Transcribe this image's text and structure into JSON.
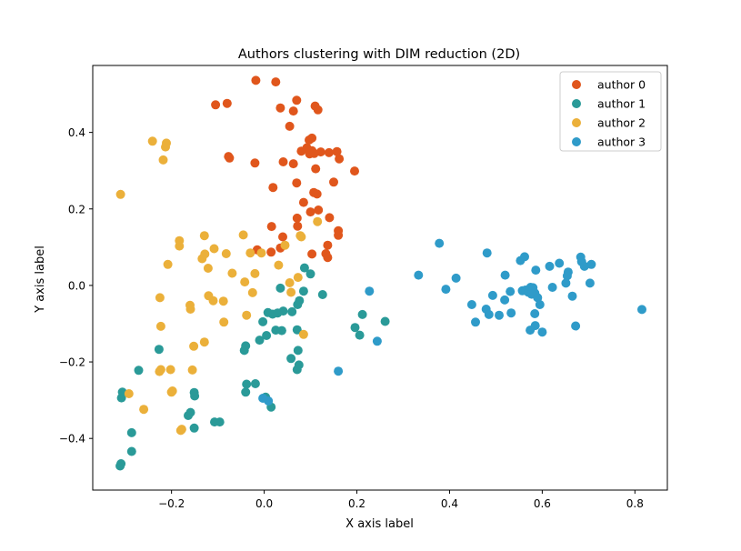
{
  "chart_data": {
    "type": "scatter",
    "title": "Authors clustering with DIM reduction (2D)",
    "xlabel": "X axis label",
    "ylabel": "Y axis label",
    "xlim": [
      -0.37,
      0.87
    ],
    "ylim": [
      -0.535,
      0.575
    ],
    "xticks": [
      -0.2,
      0.0,
      0.2,
      0.4,
      0.6,
      0.8
    ],
    "xtick_labels": [
      "−0.2",
      "0.0",
      "0.2",
      "0.4",
      "0.6",
      "0.8"
    ],
    "yticks": [
      -0.4,
      -0.2,
      0.0,
      0.2,
      0.4
    ],
    "ytick_labels": [
      "−0.4",
      "−0.2",
      "0.0",
      "0.2",
      "0.4"
    ],
    "grid": false,
    "legend_position": "top-right",
    "series": [
      {
        "name": "author 0",
        "color": "#e0561c",
        "points": [
          [
            -0.018,
            0.536
          ],
          [
            0.025,
            0.532
          ],
          [
            -0.105,
            0.472
          ],
          [
            -0.08,
            0.476
          ],
          [
            0.035,
            0.464
          ],
          [
            0.07,
            0.484
          ],
          [
            0.063,
            0.456
          ],
          [
            0.11,
            0.469
          ],
          [
            0.116,
            0.459
          ],
          [
            0.055,
            0.416
          ],
          [
            0.103,
            0.385
          ],
          [
            0.097,
            0.38
          ],
          [
            0.092,
            0.36
          ],
          [
            0.103,
            0.352
          ],
          [
            0.108,
            0.345
          ],
          [
            0.122,
            0.349
          ],
          [
            0.14,
            0.347
          ],
          [
            0.157,
            0.35
          ],
          [
            0.08,
            0.351
          ],
          [
            0.098,
            0.344
          ],
          [
            -0.077,
            0.337
          ],
          [
            -0.075,
            0.333
          ],
          [
            -0.02,
            0.32
          ],
          [
            0.041,
            0.323
          ],
          [
            0.063,
            0.318
          ],
          [
            0.162,
            0.331
          ],
          [
            0.111,
            0.305
          ],
          [
            0.195,
            0.299
          ],
          [
            0.07,
            0.268
          ],
          [
            0.15,
            0.27
          ],
          [
            0.019,
            0.256
          ],
          [
            0.107,
            0.243
          ],
          [
            0.114,
            0.239
          ],
          [
            0.085,
            0.217
          ],
          [
            0.1,
            0.192
          ],
          [
            0.117,
            0.197
          ],
          [
            0.071,
            0.176
          ],
          [
            0.141,
            0.177
          ],
          [
            0.072,
            0.155
          ],
          [
            0.016,
            0.154
          ],
          [
            0.16,
            0.143
          ],
          [
            0.04,
            0.127
          ],
          [
            0.16,
            0.131
          ],
          [
            -0.015,
            0.093
          ],
          [
            0.015,
            0.087
          ],
          [
            0.035,
            0.098
          ],
          [
            0.137,
            0.105
          ],
          [
            0.103,
            0.082
          ],
          [
            0.133,
            0.083
          ],
          [
            0.137,
            0.073
          ]
        ]
      },
      {
        "name": "author 1",
        "color": "#2a9a98",
        "points": [
          [
            0.087,
            0.046
          ],
          [
            0.1,
            0.03
          ],
          [
            0.035,
            -0.007
          ],
          [
            0.085,
            -0.015
          ],
          [
            0.126,
            -0.024
          ],
          [
            0.076,
            -0.04
          ],
          [
            0.072,
            -0.05
          ],
          [
            0.008,
            -0.071
          ],
          [
            0.018,
            -0.075
          ],
          [
            0.029,
            -0.072
          ],
          [
            0.041,
            -0.067
          ],
          [
            0.06,
            -0.069
          ],
          [
            -0.003,
            -0.095
          ],
          [
            0.025,
            -0.117
          ],
          [
            0.038,
            -0.118
          ],
          [
            0.071,
            -0.116
          ],
          [
            0.005,
            -0.131
          ],
          [
            -0.01,
            -0.143
          ],
          [
            -0.04,
            -0.158
          ],
          [
            -0.043,
            -0.17
          ],
          [
            0.073,
            -0.17
          ],
          [
            0.058,
            -0.191
          ],
          [
            0.075,
            -0.208
          ],
          [
            0.071,
            -0.22
          ],
          [
            0.196,
            -0.11
          ],
          [
            0.212,
            -0.076
          ],
          [
            0.206,
            -0.13
          ],
          [
            0.261,
            -0.094
          ],
          [
            -0.227,
            -0.167
          ],
          [
            -0.271,
            -0.222
          ],
          [
            -0.038,
            -0.258
          ],
          [
            -0.019,
            -0.257
          ],
          [
            -0.04,
            -0.279
          ],
          [
            -0.306,
            -0.279
          ],
          [
            -0.308,
            -0.294
          ],
          [
            -0.151,
            -0.28
          ],
          [
            -0.15,
            -0.289
          ],
          [
            0.003,
            -0.292
          ],
          [
            0.015,
            -0.318
          ],
          [
            -0.164,
            -0.34
          ],
          [
            -0.159,
            -0.332
          ],
          [
            -0.107,
            -0.357
          ],
          [
            -0.096,
            -0.357
          ],
          [
            -0.151,
            -0.373
          ],
          [
            -0.286,
            -0.385
          ],
          [
            -0.286,
            -0.434
          ],
          [
            -0.309,
            -0.466
          ],
          [
            -0.311,
            -0.472
          ]
        ]
      },
      {
        "name": "author 2",
        "color": "#ebb03a",
        "points": [
          [
            -0.241,
            0.377
          ],
          [
            -0.211,
            0.372
          ],
          [
            -0.213,
            0.362
          ],
          [
            -0.218,
            0.328
          ],
          [
            -0.31,
            0.238
          ],
          [
            0.115,
            0.167
          ],
          [
            -0.045,
            0.132
          ],
          [
            -0.129,
            0.13
          ],
          [
            0.078,
            0.13
          ],
          [
            0.08,
            0.127
          ],
          [
            -0.183,
            0.117
          ],
          [
            -0.183,
            0.103
          ],
          [
            -0.108,
            0.096
          ],
          [
            0.045,
            0.105
          ],
          [
            -0.128,
            0.082
          ],
          [
            -0.082,
            0.083
          ],
          [
            -0.134,
            0.07
          ],
          [
            -0.03,
            0.085
          ],
          [
            -0.006,
            0.085
          ],
          [
            -0.208,
            0.055
          ],
          [
            -0.121,
            0.045
          ],
          [
            0.031,
            0.053
          ],
          [
            -0.069,
            0.032
          ],
          [
            -0.042,
            0.009
          ],
          [
            0.055,
            0.007
          ],
          [
            -0.02,
            0.031
          ],
          [
            0.073,
            0.021
          ],
          [
            -0.225,
            -0.032
          ],
          [
            -0.12,
            -0.027
          ],
          [
            -0.11,
            -0.04
          ],
          [
            -0.088,
            -0.041
          ],
          [
            -0.025,
            -0.019
          ],
          [
            0.058,
            -0.018
          ],
          [
            -0.16,
            -0.052
          ],
          [
            -0.159,
            -0.062
          ],
          [
            -0.087,
            -0.096
          ],
          [
            -0.038,
            -0.078
          ],
          [
            -0.223,
            -0.107
          ],
          [
            0.085,
            -0.128
          ],
          [
            -0.129,
            -0.148
          ],
          [
            -0.152,
            -0.159
          ],
          [
            -0.226,
            -0.225
          ],
          [
            -0.223,
            -0.22
          ],
          [
            -0.202,
            -0.22
          ],
          [
            -0.155,
            -0.221
          ],
          [
            -0.198,
            -0.276
          ],
          [
            -0.2,
            -0.279
          ],
          [
            -0.292,
            -0.283
          ],
          [
            -0.26,
            -0.324
          ],
          [
            -0.178,
            -0.376
          ],
          [
            -0.18,
            -0.379
          ]
        ]
      },
      {
        "name": "author 3",
        "color": "#2f9bc9",
        "points": [
          [
            0.378,
            0.11
          ],
          [
            0.553,
            0.065
          ],
          [
            0.562,
            0.075
          ],
          [
            0.481,
            0.085
          ],
          [
            0.637,
            0.058
          ],
          [
            0.683,
            0.074
          ],
          [
            0.685,
            0.062
          ],
          [
            0.706,
            0.055
          ],
          [
            0.691,
            0.05
          ],
          [
            0.586,
            0.04
          ],
          [
            0.616,
            0.05
          ],
          [
            0.656,
            0.035
          ],
          [
            0.654,
            0.025
          ],
          [
            0.333,
            0.027
          ],
          [
            0.414,
            0.019
          ],
          [
            0.52,
            0.027
          ],
          [
            0.703,
            0.006
          ],
          [
            0.651,
            0.006
          ],
          [
            0.622,
            -0.005
          ],
          [
            0.392,
            -0.01
          ],
          [
            0.531,
            -0.016
          ],
          [
            0.557,
            -0.014
          ],
          [
            0.564,
            -0.012
          ],
          [
            0.57,
            -0.018
          ],
          [
            0.575,
            -0.005
          ],
          [
            0.58,
            -0.006
          ],
          [
            0.584,
            -0.02
          ],
          [
            0.577,
            -0.023
          ],
          [
            0.59,
            -0.032
          ],
          [
            0.665,
            -0.028
          ],
          [
            0.493,
            -0.026
          ],
          [
            0.519,
            -0.038
          ],
          [
            0.595,
            -0.05
          ],
          [
            0.448,
            -0.05
          ],
          [
            0.479,
            -0.062
          ],
          [
            0.485,
            -0.076
          ],
          [
            0.507,
            -0.078
          ],
          [
            0.533,
            -0.072
          ],
          [
            0.584,
            -0.074
          ],
          [
            0.456,
            -0.096
          ],
          [
            0.585,
            -0.105
          ],
          [
            0.574,
            -0.117
          ],
          [
            0.6,
            -0.122
          ],
          [
            0.672,
            -0.106
          ],
          [
            0.815,
            -0.063
          ],
          [
            0.227,
            -0.015
          ],
          [
            0.244,
            -0.146
          ],
          [
            0.16,
            -0.224
          ],
          [
            0.009,
            -0.302
          ],
          [
            -0.003,
            -0.295
          ]
        ]
      }
    ]
  }
}
